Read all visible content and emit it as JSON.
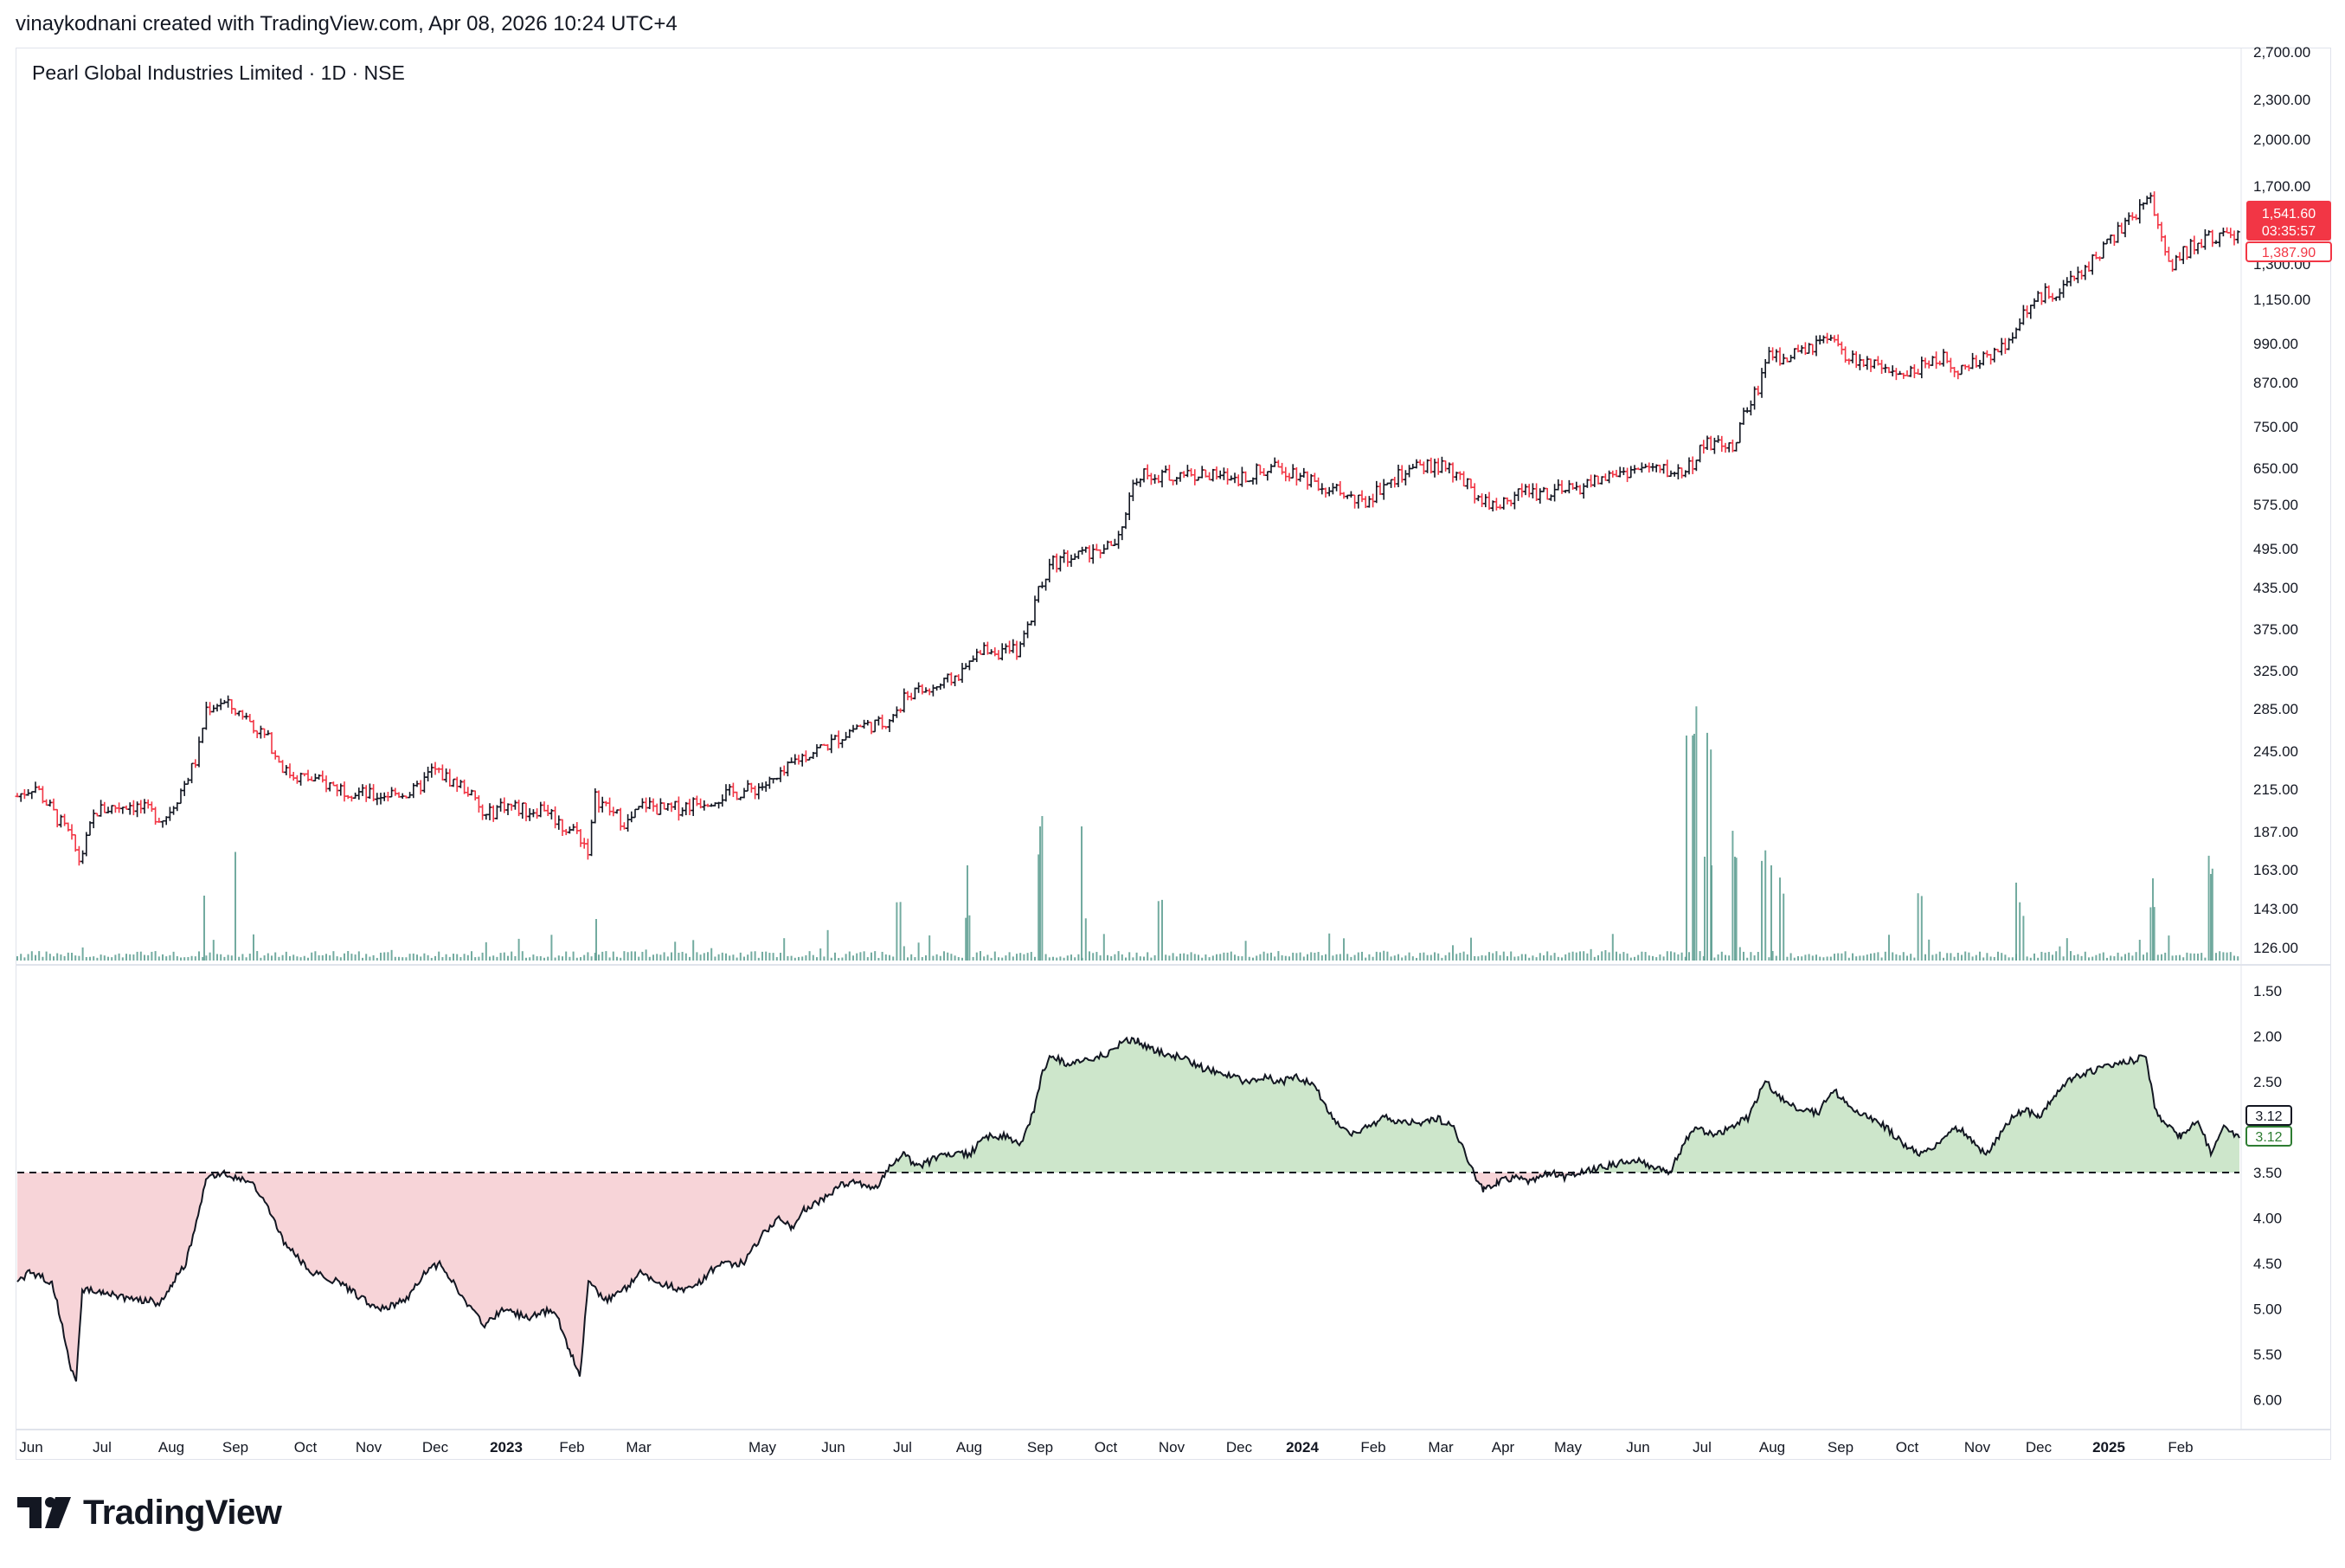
{
  "header": {
    "created_line": "vinaykodnani created with TradingView.com, Apr 08, 2026 10:24 UTC+4"
  },
  "symbol": {
    "title": "Pearl Global Industries Limited · 1D · NSE"
  },
  "price_axis": {
    "ticks": [
      "2,700.00",
      "2,300.00",
      "2,000.00",
      "1,700.00",
      "1,300.00",
      "1,150.00",
      "990.00",
      "870.00",
      "750.00",
      "650.00",
      "575.00",
      "495.00",
      "435.00",
      "375.00",
      "325.00",
      "285.00",
      "245.00",
      "215.00",
      "187.00",
      "163.00",
      "143.00",
      "126.00"
    ],
    "last_price_label": "1,541.60",
    "countdown_label": "03:35:57",
    "secondary_label": "1,387.90"
  },
  "indicator_axis": {
    "ticks": [
      "1.50",
      "2.00",
      "2.50",
      "3.50",
      "4.00",
      "4.50",
      "5.00",
      "5.50",
      "6.00"
    ],
    "value_label_1": "3.12",
    "value_label_2": "3.12",
    "baseline": 3.5
  },
  "time_axis": {
    "labels": [
      {
        "text": "Jun",
        "bold": false
      },
      {
        "text": "Jul",
        "bold": false
      },
      {
        "text": "Aug",
        "bold": false
      },
      {
        "text": "Sep",
        "bold": false
      },
      {
        "text": "Oct",
        "bold": false
      },
      {
        "text": "Nov",
        "bold": false
      },
      {
        "text": "Dec",
        "bold": false
      },
      {
        "text": "2023",
        "bold": true
      },
      {
        "text": "Feb",
        "bold": false
      },
      {
        "text": "Mar",
        "bold": false
      },
      {
        "text": "May",
        "bold": false
      },
      {
        "text": "Jun",
        "bold": false
      },
      {
        "text": "Jul",
        "bold": false
      },
      {
        "text": "Aug",
        "bold": false
      },
      {
        "text": "Sep",
        "bold": false
      },
      {
        "text": "Oct",
        "bold": false
      },
      {
        "text": "Nov",
        "bold": false
      },
      {
        "text": "Dec",
        "bold": false
      },
      {
        "text": "2024",
        "bold": true
      },
      {
        "text": "Feb",
        "bold": false
      },
      {
        "text": "Mar",
        "bold": false
      },
      {
        "text": "Apr",
        "bold": false
      },
      {
        "text": "May",
        "bold": false
      },
      {
        "text": "Jun",
        "bold": false
      },
      {
        "text": "Jul",
        "bold": false
      },
      {
        "text": "Aug",
        "bold": false
      },
      {
        "text": "Sep",
        "bold": false
      },
      {
        "text": "Oct",
        "bold": false
      },
      {
        "text": "Nov",
        "bold": false
      },
      {
        "text": "Dec",
        "bold": false
      },
      {
        "text": "2025",
        "bold": true
      },
      {
        "text": "Feb",
        "bold": false
      }
    ]
  },
  "colors": {
    "up": "#131722",
    "down": "#f23645",
    "volume": "#5b9c8f",
    "above_fill": "#cde6cb",
    "below_fill": "#f7d4d8",
    "last_price_bg": "#f23645",
    "indicator_label_green": "#2e7d32"
  },
  "brand": {
    "name": "TradingView"
  },
  "chart_data": [
    {
      "type": "ohlc",
      "title": "Pearl Global Industries Limited · 1D · NSE",
      "scale": "log",
      "ylim": [
        120,
        2750
      ],
      "close_series": [
        {
          "x": "2022-06",
          "y": 205
        },
        {
          "x": "2022-07",
          "y": 200
        },
        {
          "x": "2022-08",
          "y": 215
        },
        {
          "x": "2022-09",
          "y": 285
        },
        {
          "x": "2022-10",
          "y": 225
        },
        {
          "x": "2022-11",
          "y": 205
        },
        {
          "x": "2022-12",
          "y": 220
        },
        {
          "x": "2023-01",
          "y": 205
        },
        {
          "x": "2023-02",
          "y": 175
        },
        {
          "x": "2023-03",
          "y": 205
        },
        {
          "x": "2023-04",
          "y": 212
        },
        {
          "x": "2023-05",
          "y": 245
        },
        {
          "x": "2023-06",
          "y": 265
        },
        {
          "x": "2023-07",
          "y": 300
        },
        {
          "x": "2023-08",
          "y": 345
        },
        {
          "x": "2023-09",
          "y": 480
        },
        {
          "x": "2023-10",
          "y": 640
        },
        {
          "x": "2023-11",
          "y": 640
        },
        {
          "x": "2023-12",
          "y": 640
        },
        {
          "x": "2024-01",
          "y": 660
        },
        {
          "x": "2024-02",
          "y": 585
        },
        {
          "x": "2024-03",
          "y": 600
        },
        {
          "x": "2024-04",
          "y": 585
        },
        {
          "x": "2024-05",
          "y": 615
        },
        {
          "x": "2024-06",
          "y": 655
        },
        {
          "x": "2024-07",
          "y": 740
        },
        {
          "x": "2024-08",
          "y": 960
        },
        {
          "x": "2024-09",
          "y": 940
        },
        {
          "x": "2024-10",
          "y": 900
        },
        {
          "x": "2024-11",
          "y": 960
        },
        {
          "x": "2024-12",
          "y": 1350
        },
        {
          "x": "2025-01",
          "y": 1650
        },
        {
          "x": "2025-02",
          "y": 1400
        },
        {
          "x": "2025-03",
          "y": 1541.6
        }
      ],
      "last_price": 1541.6,
      "volume_spikes": [
        "2024-07",
        "2022-09",
        "2023-09",
        "2025-01"
      ]
    },
    {
      "type": "line",
      "name": "indicator",
      "scale": "inverted",
      "ylim": [
        1.5,
        6.0
      ],
      "baseline": 3.5,
      "x": [
        "2022-06",
        "2022-07",
        "2022-08",
        "2022-09",
        "2022-10",
        "2022-11",
        "2022-12",
        "2023-01",
        "2023-02",
        "2023-03",
        "2023-04",
        "2023-05",
        "2023-06",
        "2023-07",
        "2023-08",
        "2023-09",
        "2023-10",
        "2023-11",
        "2023-12",
        "2024-01",
        "2024-02",
        "2024-03",
        "2024-04",
        "2024-05",
        "2024-06",
        "2024-07",
        "2024-08",
        "2024-09",
        "2024-10",
        "2024-11",
        "2024-12",
        "2025-01",
        "2025-02",
        "2025-03"
      ],
      "values": [
        4.7,
        5.0,
        4.6,
        3.5,
        4.3,
        4.9,
        4.5,
        5.1,
        5.2,
        4.6,
        4.7,
        4.2,
        3.8,
        3.4,
        3.2,
        2.3,
        2.2,
        2.4,
        2.4,
        2.5,
        3.1,
        3.0,
        3.7,
        3.6,
        3.3,
        3.0,
        2.6,
        2.8,
        3.3,
        3.1,
        2.5,
        2.4,
        3.0,
        3.12
      ]
    }
  ]
}
